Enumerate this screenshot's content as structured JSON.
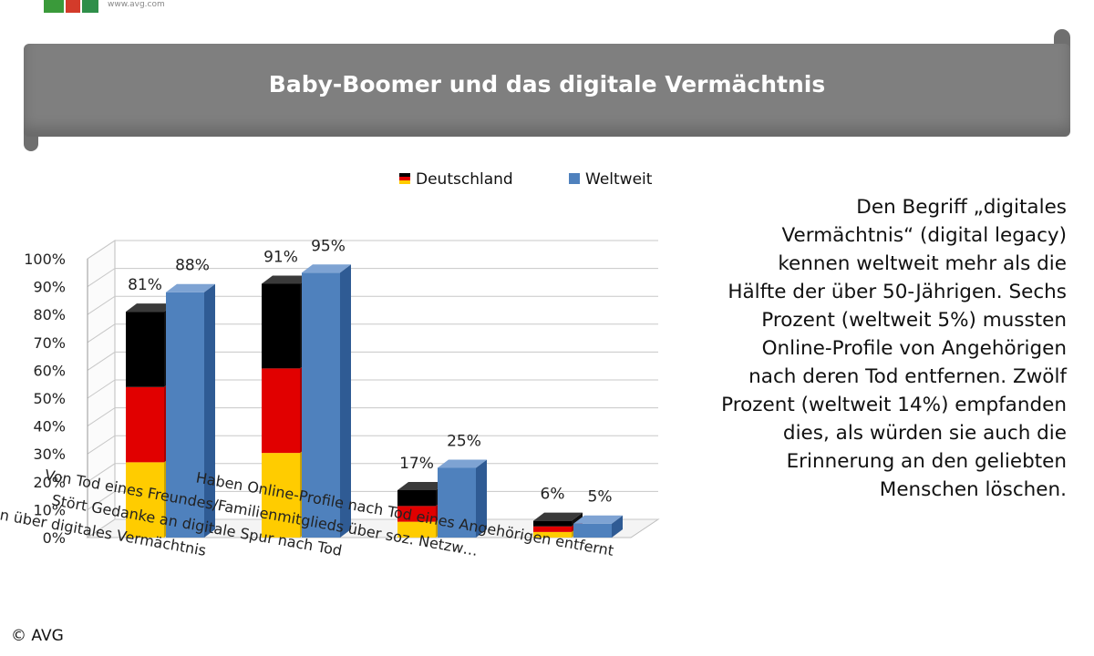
{
  "header": {
    "logo_url": "www.avg.com",
    "title": "Baby-Boomer und das digitale Vermächtnis"
  },
  "colors": {
    "banner": "#7f7f7f",
    "de_black": "#000000",
    "de_red": "#e10000",
    "de_gold": "#ffcc00",
    "weltweit": "#4f81bd"
  },
  "chart_data": {
    "type": "bar",
    "title": "Baby-Boomer und das digitale Vermächtnis",
    "categories": [
      "Machen sich Gedanken über digitales Vermächtnis",
      "Stört Gedanke an digitale Spur nach Tod",
      "Von Tod eines Freundes/Familienmitglieds über soz. Netzw…",
      "Haben Online-Profile nach Tod eines Angehörigen entfernt"
    ],
    "series": [
      {
        "name": "Deutschland",
        "values": [
          81,
          91,
          17,
          6
        ],
        "labels": [
          "81%",
          "91%",
          "17%",
          "6%"
        ]
      },
      {
        "name": "Weltweit",
        "values": [
          88,
          95,
          25,
          5
        ],
        "labels": [
          "88%",
          "95%",
          "25%",
          "5%"
        ]
      }
    ],
    "y_ticks": [
      "0%",
      "10%",
      "20%",
      "30%",
      "40%",
      "50%",
      "60%",
      "70%",
      "80%",
      "90%",
      "100%"
    ],
    "ylim": [
      0,
      100
    ],
    "grid": true,
    "legend_position": "top"
  },
  "note": "Den Begriff „digitales Vermächtnis“ (digital legacy) kennen weltweit mehr als die Hälfte der über 50-Jährigen. Sechs Prozent (weltweit 5%) mussten Online-Profile von Angehörigen nach deren Tod entfernen. Zwölf Prozent (weltweit 14%) empfanden dies, als würden sie auch die Erinnerung an den geliebten Menschen löschen.",
  "copyright": "© AVG"
}
